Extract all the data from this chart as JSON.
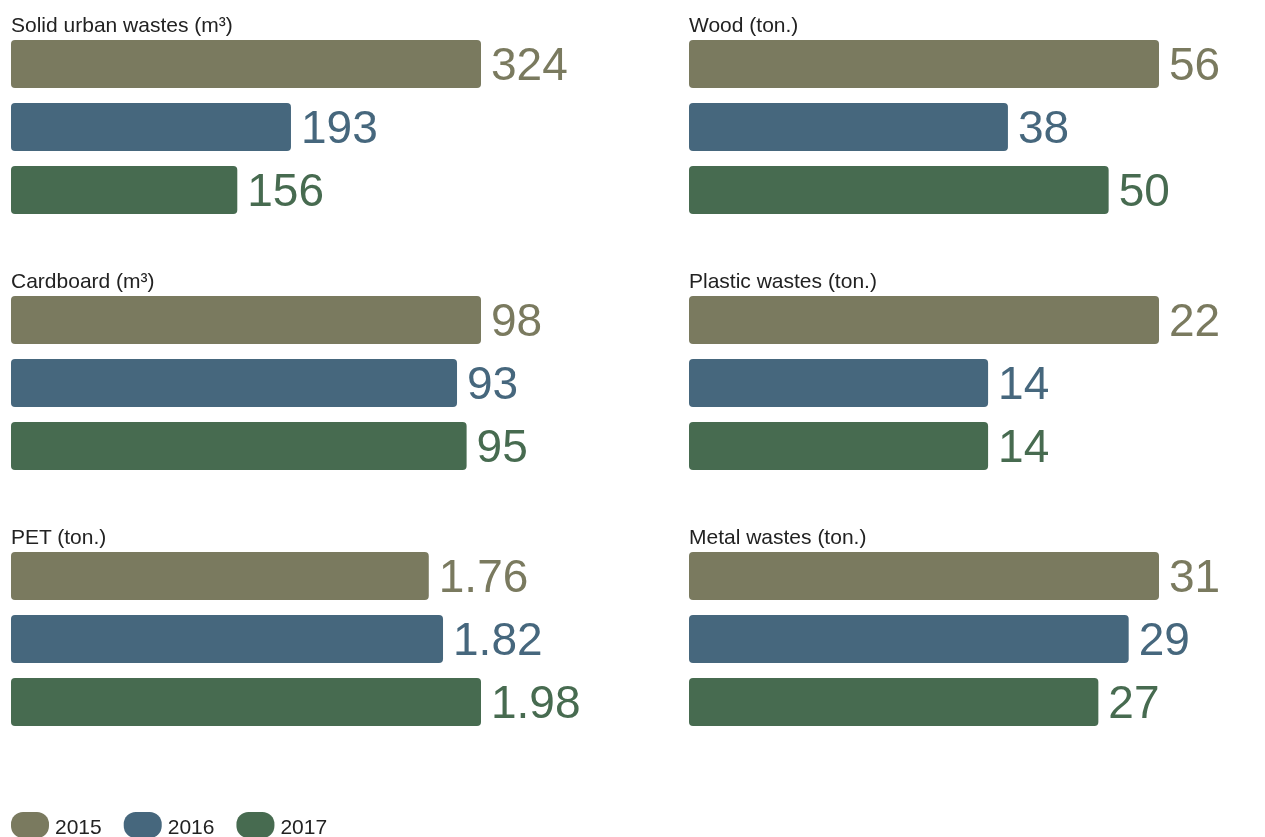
{
  "chart_data": [
    {
      "type": "bar",
      "orientation": "horizontal",
      "title": "Solid urban wastes (m³)",
      "categories": [
        null
      ],
      "data_labels": true,
      "legend": false,
      "series": [
        {
          "color": "#7a7a5f",
          "values": [
            324
          ]
        },
        {
          "color": "#46677d",
          "values": [
            193
          ]
        },
        {
          "color": "#476b50",
          "values": [
            156
          ]
        }
      ]
    },
    {
      "type": "bar",
      "orientation": "horizontal",
      "title": "Wood (ton.)",
      "categories": [
        null
      ],
      "data_labels": true,
      "legend": false,
      "series": [
        {
          "color": "#7a7a5f",
          "values": [
            56
          ]
        },
        {
          "color": "#46677d",
          "values": [
            38
          ]
        },
        {
          "color": "#476b50",
          "values": [
            50
          ]
        }
      ]
    },
    {
      "type": "bar",
      "orientation": "horizontal",
      "title": "Cardboard (m³)",
      "categories": [
        null
      ],
      "data_labels": true,
      "legend": false,
      "series": [
        {
          "color": "#7a7a5f",
          "values": [
            98
          ]
        },
        {
          "color": "#46677d",
          "values": [
            93
          ]
        },
        {
          "color": "#476b50",
          "values": [
            95
          ]
        }
      ]
    },
    {
      "type": "bar",
      "orientation": "horizontal",
      "title": "Plastic wastes (ton.)",
      "categories": [
        null
      ],
      "data_labels": true,
      "legend": false,
      "series": [
        {
          "color": "#7a7a5f",
          "values": [
            22
          ]
        },
        {
          "color": "#46677d",
          "values": [
            14
          ]
        },
        {
          "color": "#476b50",
          "values": [
            14
          ]
        }
      ]
    },
    {
      "type": "bar",
      "orientation": "horizontal",
      "title": "PET (ton.)",
      "categories": [
        null
      ],
      "data_labels": true,
      "legend": "bottom",
      "series": [
        {
          "name": "2015",
          "color": "#7a7a5f",
          "values": [
            1.76
          ]
        },
        {
          "name": "2016",
          "color": "#46677d",
          "values": [
            1.82
          ]
        },
        {
          "name": "2017",
          "color": "#476b50",
          "values": [
            1.98
          ]
        }
      ]
    },
    {
      "type": "bar",
      "orientation": "horizontal",
      "title": "Metal wastes (ton.)",
      "categories": [
        null
      ],
      "data_labels": true,
      "legend": false,
      "series": [
        {
          "color": "#7a7a5f",
          "values": [
            31
          ]
        },
        {
          "color": "#46677d",
          "values": [
            29
          ]
        },
        {
          "color": "#476b50",
          "values": [
            27
          ]
        }
      ]
    }
  ]
}
